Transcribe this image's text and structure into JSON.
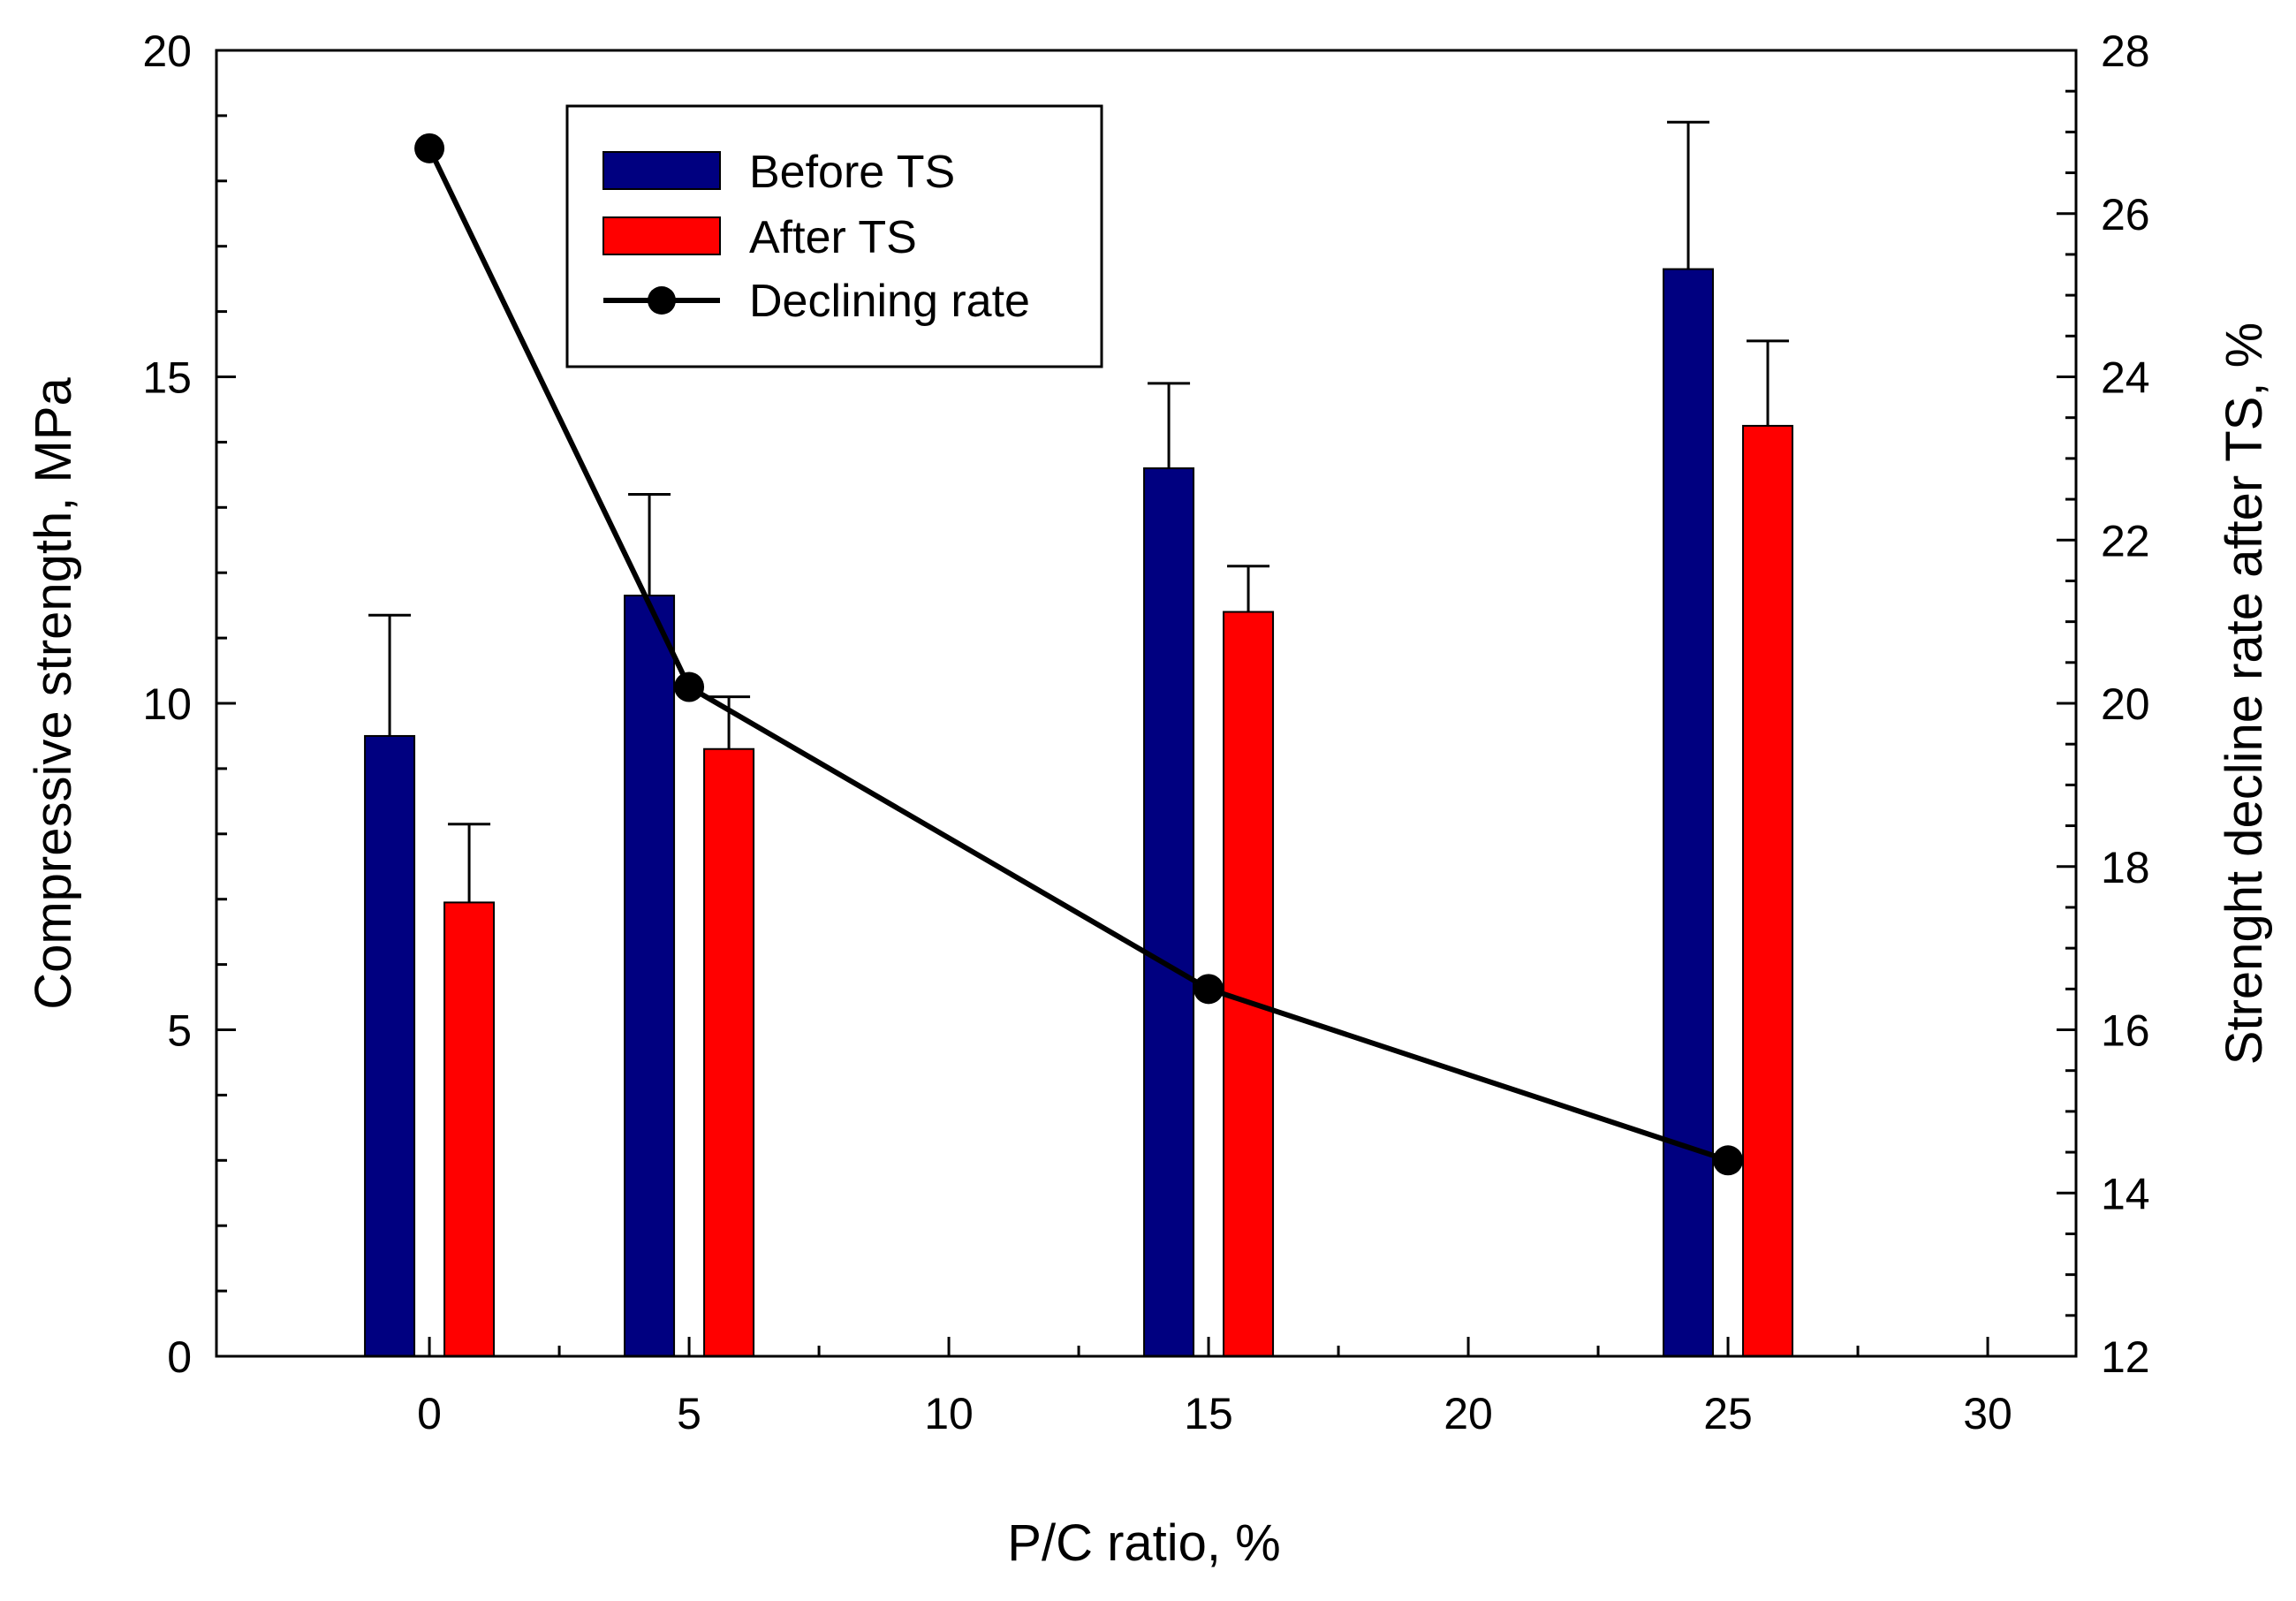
{
  "chart_data": {
    "type": "bar",
    "xlabel": "P/C ratio, %",
    "ylabel": "Compressive strength, MPa",
    "y2label": "Strenght decline rate after TS, %",
    "xlim": [
      -4.1,
      31.7
    ],
    "ylim": [
      0,
      20
    ],
    "y2lim": [
      12,
      28
    ],
    "xticks": [
      "0",
      "5",
      "10",
      "15",
      "20",
      "25",
      "30"
    ],
    "yticks": [
      "0",
      "5",
      "10",
      "15",
      "20"
    ],
    "y2ticks": [
      "12",
      "14",
      "16",
      "18",
      "20",
      "22",
      "24",
      "26",
      "28"
    ],
    "x": [
      0,
      5,
      15,
      25
    ],
    "series": [
      {
        "name": "Before TS",
        "kind": "bar",
        "axis": "left",
        "color": "#000080",
        "values": [
          9.5,
          11.65,
          13.6,
          16.65
        ],
        "errors": [
          1.85,
          1.55,
          1.3,
          2.25
        ]
      },
      {
        "name": "After TS",
        "kind": "bar",
        "axis": "left",
        "color": "#ff0000",
        "values": [
          6.95,
          9.3,
          11.4,
          14.25
        ],
        "errors": [
          1.2,
          0.8,
          0.7,
          1.3
        ]
      },
      {
        "name": "Declining rate",
        "kind": "line",
        "axis": "right",
        "color": "#000000",
        "values": [
          26.8,
          20.2,
          16.5,
          14.4
        ]
      }
    ],
    "legend": {
      "placement": "top-left",
      "entries": [
        "Before TS",
        "After TS",
        "Declining rate"
      ]
    }
  }
}
